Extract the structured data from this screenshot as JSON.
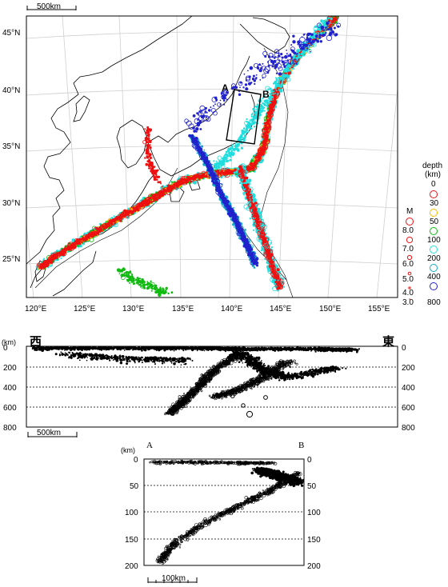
{
  "map": {
    "scale_label": "500km",
    "lat_labels": [
      "45°N",
      "40°N",
      "35°N",
      "30°N",
      "25°N"
    ],
    "lon_labels": [
      "120°E",
      "125°E",
      "130°E",
      "135°E",
      "140°E",
      "145°E",
      "150°E",
      "155°E"
    ],
    "box_label_a": "A",
    "box_label_b": "B"
  },
  "legend": {
    "depth_title": "depth",
    "depth_unit": "(km)",
    "depth_values": [
      "0",
      "30",
      "50",
      "100",
      "200",
      "400",
      "800"
    ],
    "depth_colors": [
      "#ee1111",
      "#ffbb00",
      "#11bb11",
      "#22dddd",
      "#11aacc",
      "#2222cc"
    ],
    "magnitude_title": "M",
    "magnitude_values": [
      "8.0",
      "7.0",
      "6.0",
      "5.0",
      "4.0",
      "3.0"
    ]
  },
  "cross_section_west_east": {
    "west_label": "西",
    "east_label": "東",
    "unit": "(km)",
    "depth_ticks": [
      "0",
      "200",
      "400",
      "600",
      "800"
    ],
    "scale_label": "500km"
  },
  "cross_section_a_b": {
    "left_label": "A",
    "right_label": "B",
    "unit": "(km)",
    "depth_ticks": [
      "0",
      "50",
      "100",
      "150",
      "200"
    ],
    "scale_label": "100km"
  }
}
